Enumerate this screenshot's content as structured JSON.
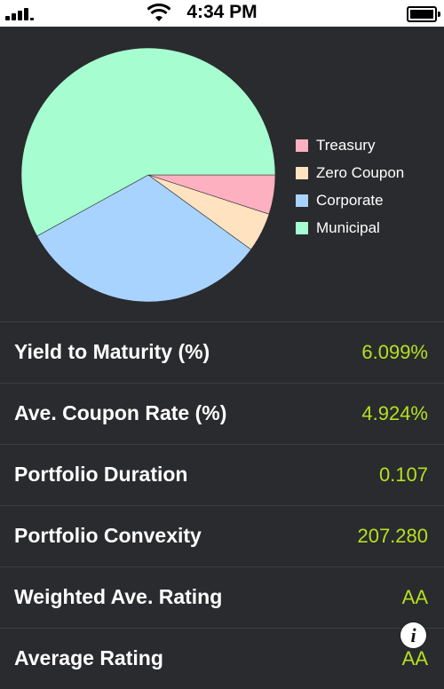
{
  "status_bar": {
    "time": "4:34 PM",
    "signal_icon": "signal-bars-icon",
    "wifi_icon": "wifi-icon",
    "battery_icon": "battery-icon"
  },
  "chart_data": {
    "type": "pie",
    "categories": [
      "Treasury",
      "Zero Coupon",
      "Corporate",
      "Municipal"
    ],
    "values": [
      5,
      5,
      32,
      58
    ],
    "colors": [
      "#fdb0c0",
      "#ffe2bf",
      "#a8d3ff",
      "#a6fdd0"
    ],
    "legend_position": "right"
  },
  "metrics": [
    {
      "label": "Yield to Maturity (%)",
      "value": "6.099%"
    },
    {
      "label": "Ave. Coupon Rate (%)",
      "value": "4.924%"
    },
    {
      "label": "Portfolio Duration",
      "value": "0.107"
    },
    {
      "label": "Portfolio Convexity",
      "value": "207.280"
    },
    {
      "label": "Weighted Ave. Rating",
      "value": "AA"
    },
    {
      "label": "Average Rating",
      "value": "AA"
    }
  ],
  "info_button": {
    "icon": "info-icon",
    "glyph": "i"
  },
  "colors": {
    "value_accent": "#b6e021",
    "background": "#2a2b2e"
  }
}
